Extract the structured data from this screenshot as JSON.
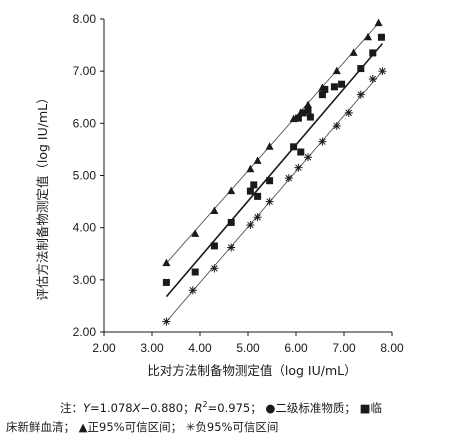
{
  "chart_data": {
    "type": "scatter",
    "xlabel": "比对方法制备物测定值（log IU/mL）",
    "ylabel": "评估方法制备物测定值（log IU/mL）",
    "xlim": [
      2.0,
      8.0
    ],
    "ylim": [
      2.0,
      8.0
    ],
    "x_ticks": [
      "2.00",
      "3.00",
      "4.00",
      "5.00",
      "6.00",
      "7.00",
      "8.00"
    ],
    "y_ticks": [
      "2.00",
      "3.00",
      "4.00",
      "5.00",
      "6.00",
      "7.00",
      "8.00"
    ],
    "grid": false,
    "regression": {
      "slope": 1.078,
      "intercept": -0.88,
      "r2": 0.975,
      "x_range": [
        3.3,
        7.8
      ]
    },
    "series": [
      {
        "name": "二级标准物质",
        "marker": "circle",
        "points": []
      },
      {
        "name": "临床新鲜血清",
        "marker": "square",
        "points": [
          [
            3.3,
            2.95
          ],
          [
            3.9,
            3.15
          ],
          [
            4.3,
            3.65
          ],
          [
            4.65,
            4.1
          ],
          [
            5.05,
            4.7
          ],
          [
            5.12,
            4.82
          ],
          [
            5.2,
            4.6
          ],
          [
            5.45,
            4.9
          ],
          [
            5.95,
            5.55
          ],
          [
            6.05,
            6.1
          ],
          [
            6.1,
            5.45
          ],
          [
            6.15,
            6.2
          ],
          [
            6.25,
            6.25
          ],
          [
            6.3,
            6.12
          ],
          [
            6.55,
            6.55
          ],
          [
            6.6,
            6.65
          ],
          [
            6.8,
            6.7
          ],
          [
            6.95,
            6.75
          ],
          [
            7.35,
            7.05
          ],
          [
            7.6,
            7.35
          ],
          [
            7.78,
            7.65
          ]
        ]
      },
      {
        "name": "正95%可信区间",
        "marker": "triangle",
        "points": [
          [
            3.3,
            3.32
          ],
          [
            3.9,
            3.88
          ],
          [
            4.3,
            4.32
          ],
          [
            4.65,
            4.7
          ],
          [
            5.05,
            5.12
          ],
          [
            5.2,
            5.28
          ],
          [
            5.45,
            5.55
          ],
          [
            5.95,
            6.08
          ],
          [
            6.1,
            6.2
          ],
          [
            6.25,
            6.35
          ],
          [
            6.55,
            6.68
          ],
          [
            6.85,
            7.0
          ],
          [
            7.2,
            7.35
          ],
          [
            7.5,
            7.65
          ],
          [
            7.72,
            7.92
          ]
        ]
      },
      {
        "name": "负95%可信区间",
        "marker": "asterisk",
        "points": [
          [
            3.3,
            2.2
          ],
          [
            3.85,
            2.8
          ],
          [
            4.3,
            3.22
          ],
          [
            4.65,
            3.62
          ],
          [
            5.05,
            4.05
          ],
          [
            5.2,
            4.2
          ],
          [
            5.45,
            4.5
          ],
          [
            5.85,
            4.95
          ],
          [
            6.05,
            5.15
          ],
          [
            6.25,
            5.35
          ],
          [
            6.55,
            5.65
          ],
          [
            6.85,
            5.95
          ],
          [
            7.1,
            6.2
          ],
          [
            7.35,
            6.55
          ],
          [
            7.6,
            6.85
          ],
          [
            7.8,
            7.0
          ]
        ]
      }
    ]
  },
  "note": {
    "prefix": "注：",
    "equation_y": "Y",
    "equation_rest": "=1.078",
    "equation_x": "X",
    "equation_tail": "−0.880；",
    "r2_label": "R",
    "r2_sup": "2",
    "r2_value": "=0.975；",
    "legend_circle_symbol": "●",
    "legend_circle_label": "二级标准物质；",
    "legend_square_symbol": "■",
    "legend_square_label_part1": "临",
    "legend_square_label_part2": "床新鲜血清；",
    "legend_triangle_symbol": "▲",
    "legend_triangle_label": "正95%可信区间；",
    "legend_asterisk_symbol": "✳",
    "legend_asterisk_label": "负95%可信区间"
  }
}
